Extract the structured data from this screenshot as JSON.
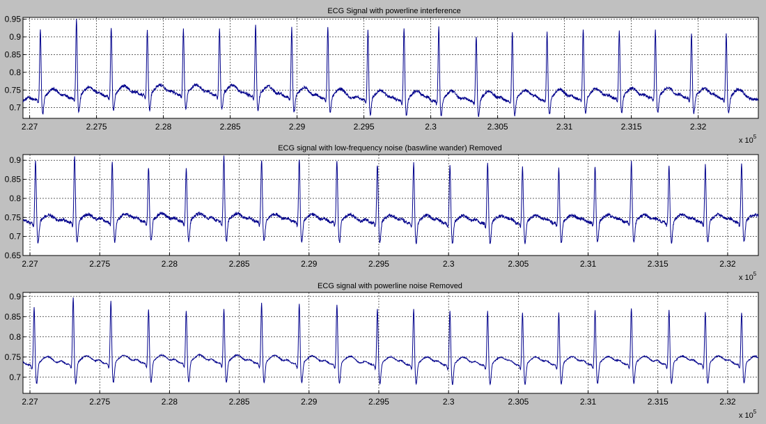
{
  "figure": {
    "background": "#c0c0c0",
    "axes_background": "#ffffff",
    "line_color": "#00008b"
  },
  "chart_data": [
    {
      "type": "line",
      "title": "ECG Signal with powerline interference",
      "xlabel": "",
      "ylabel": "",
      "xlim": [
        226950,
        232450
      ],
      "ylim": [
        0.67,
        0.955
      ],
      "x_ticks": [
        227000,
        227500,
        228000,
        228500,
        229000,
        229500,
        230000,
        230500,
        231000,
        231500,
        232000
      ],
      "x_tick_labels": [
        "2.27",
        "2.275",
        "2.28",
        "2.285",
        "2.29",
        "2.295",
        "2.3",
        "2.305",
        "2.31",
        "2.315",
        "2.32"
      ],
      "y_ticks": [
        0.7,
        0.75,
        0.8,
        0.85,
        0.9,
        0.95
      ],
      "y_tick_labels": [
        "0.7",
        "0.75",
        "0.8",
        "0.85",
        "0.9",
        "0.95"
      ],
      "x_exponent_label": "x 10",
      "x_exponent_power": "5",
      "grid": true,
      "series": [
        {
          "beats_x": [
            227080,
            227350,
            227610,
            227880,
            228150,
            228420,
            228690,
            228960,
            229230,
            229530,
            229800,
            230060,
            230340,
            230610,
            230870,
            231140,
            231410,
            231680,
            231950,
            232210
          ],
          "peaks": [
            0.92,
            0.945,
            0.915,
            0.905,
            0.905,
            0.91,
            0.92,
            0.915,
            0.925,
            0.915,
            0.925,
            0.93,
            0.905,
            0.915,
            0.91,
            0.92,
            0.915,
            0.91,
            0.905,
            0.905
          ],
          "trough_depth": 0.045,
          "baseline_mean": 0.72,
          "baseline_wander": 0.02,
          "noise": 0.004,
          "t_height": 0.028
        }
      ]
    },
    {
      "type": "line",
      "title": "ECG signal with low-frequency noise (baswline wander) Removed",
      "xlabel": "",
      "ylabel": "",
      "xlim": [
        226950,
        232220
      ],
      "ylim": [
        0.65,
        0.915
      ],
      "x_ticks": [
        227000,
        227500,
        228000,
        228500,
        229000,
        229500,
        230000,
        230500,
        231000,
        231500,
        232000
      ],
      "x_tick_labels": [
        "2.27",
        "2.275",
        "2.28",
        "2.285",
        "2.29",
        "2.295",
        "2.3",
        "2.305",
        "2.31",
        "2.315",
        "2.32"
      ],
      "y_ticks": [
        0.65,
        0.7,
        0.75,
        0.8,
        0.85,
        0.9
      ],
      "y_tick_labels": [
        "0.65",
        "0.7",
        "0.75",
        "0.8",
        "0.85",
        "0.9"
      ],
      "x_exponent_label": "x 10",
      "x_exponent_power": "5",
      "grid": true,
      "series": [
        {
          "beats_x": [
            227040,
            227320,
            227590,
            227850,
            228120,
            228390,
            228660,
            228930,
            229200,
            229490,
            229750,
            230010,
            230280,
            230530,
            230790,
            231050,
            231310,
            231580,
            231840,
            232100
          ],
          "peaks": [
            0.9,
            0.91,
            0.895,
            0.88,
            0.875,
            0.905,
            0.9,
            0.9,
            0.9,
            0.89,
            0.895,
            0.89,
            0.895,
            0.885,
            0.88,
            0.885,
            0.895,
            0.885,
            0.885,
            0.89
          ],
          "trough_depth": 0.055,
          "baseline_mean": 0.735,
          "baseline_wander": 0.006,
          "noise": 0.004,
          "t_height": 0.02
        }
      ]
    },
    {
      "type": "line",
      "title": "ECG signal with powerline noise Removed",
      "xlabel": "",
      "ylabel": "",
      "xlim": [
        226950,
        232220
      ],
      "ylim": [
        0.66,
        0.91
      ],
      "x_ticks": [
        227000,
        227500,
        228000,
        228500,
        229000,
        229500,
        230000,
        230500,
        231000,
        231500,
        232000
      ],
      "x_tick_labels": [
        "2.27",
        "2.275",
        "2.28",
        "2.285",
        "2.29",
        "2.295",
        "2.3",
        "2.305",
        "2.31",
        "2.315",
        "2.32"
      ],
      "y_ticks": [
        0.7,
        0.75,
        0.8,
        0.85,
        0.9
      ],
      "y_tick_labels": [
        "0.7",
        "0.75",
        "0.8",
        "0.85",
        "0.9"
      ],
      "x_exponent_label": "x 10",
      "x_exponent_power": "5",
      "grid": true,
      "series": [
        {
          "beats_x": [
            227030,
            227310,
            227580,
            227850,
            228120,
            228390,
            228660,
            228930,
            229200,
            229490,
            229750,
            230010,
            230280,
            230530,
            230790,
            231050,
            231310,
            231580,
            231840,
            232100
          ],
          "peaks": [
            0.875,
            0.895,
            0.885,
            0.865,
            0.86,
            0.865,
            0.88,
            0.88,
            0.88,
            0.87,
            0.87,
            0.865,
            0.865,
            0.86,
            0.86,
            0.865,
            0.87,
            0.865,
            0.86,
            0.86
          ],
          "trough_depth": 0.05,
          "baseline_mean": 0.73,
          "baseline_wander": 0.006,
          "noise": 0.0015,
          "t_height": 0.02
        }
      ]
    }
  ]
}
